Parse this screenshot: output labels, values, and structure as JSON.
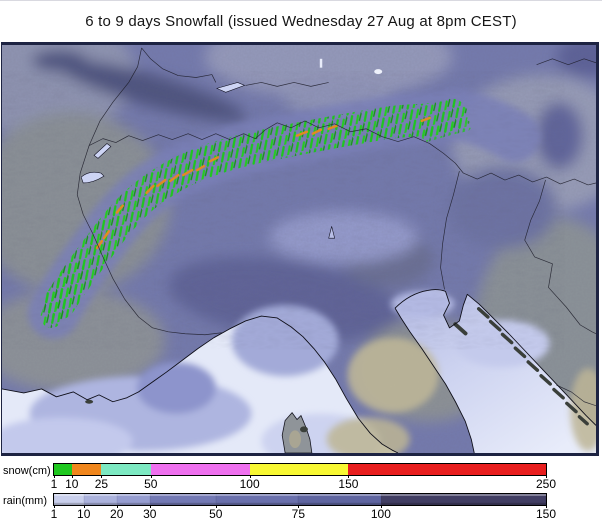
{
  "title": "6 to 9 days Snowfall (issued Wednesday 27 Aug at 8pm CEST)",
  "map": {
    "description": "Snowfall and rain accumulation forecast map of the Alps, northern Italy and surrounding seas",
    "colors": {
      "land_rain_base": "#747aae",
      "dry_land_gray": "#8c9197",
      "dry_land_tan": "#c0b898",
      "sea_light": "#e4e9f8",
      "mountain_purple": "#7a80b8",
      "snow_green": "#1ec81e",
      "snow_orange": "#ef8a1e",
      "dark_rain_band": "#4d5380",
      "border_line": "#1c1c28",
      "frame": "#1d2342",
      "lake_fill": "#cdd4f4"
    }
  },
  "legend": {
    "snow": {
      "label": "snow(cm)",
      "min": 1,
      "max": 250,
      "ticks": [
        1,
        10,
        25,
        50,
        100,
        150,
        250
      ],
      "segments": [
        {
          "to": 10,
          "color": "#1fc81f"
        },
        {
          "to": 25,
          "color": "#f0861c"
        },
        {
          "to": 50,
          "color": "#7de9c2"
        },
        {
          "to": 100,
          "color": "#ef70ef"
        },
        {
          "to": 150,
          "color": "#f8f833"
        },
        {
          "to": 250,
          "color": "#e81e1e"
        }
      ]
    },
    "rain": {
      "label": "rain(mm)",
      "min": 1,
      "max": 150,
      "ticks": [
        1,
        10,
        20,
        30,
        50,
        75,
        100,
        150
      ],
      "segments": [
        {
          "to": 10,
          "color": "#c9cfec"
        },
        {
          "to": 20,
          "color": "#abb2dc"
        },
        {
          "to": 30,
          "color": "#969dd0"
        },
        {
          "to": 50,
          "color": "#7artifact"
        },
        {
          "to": 75,
          "color": "#6a70ac"
        },
        {
          "to": 100,
          "color": "#5f65a0"
        },
        {
          "to": 150,
          "color": "#413e63"
        }
      ]
    }
  }
}
